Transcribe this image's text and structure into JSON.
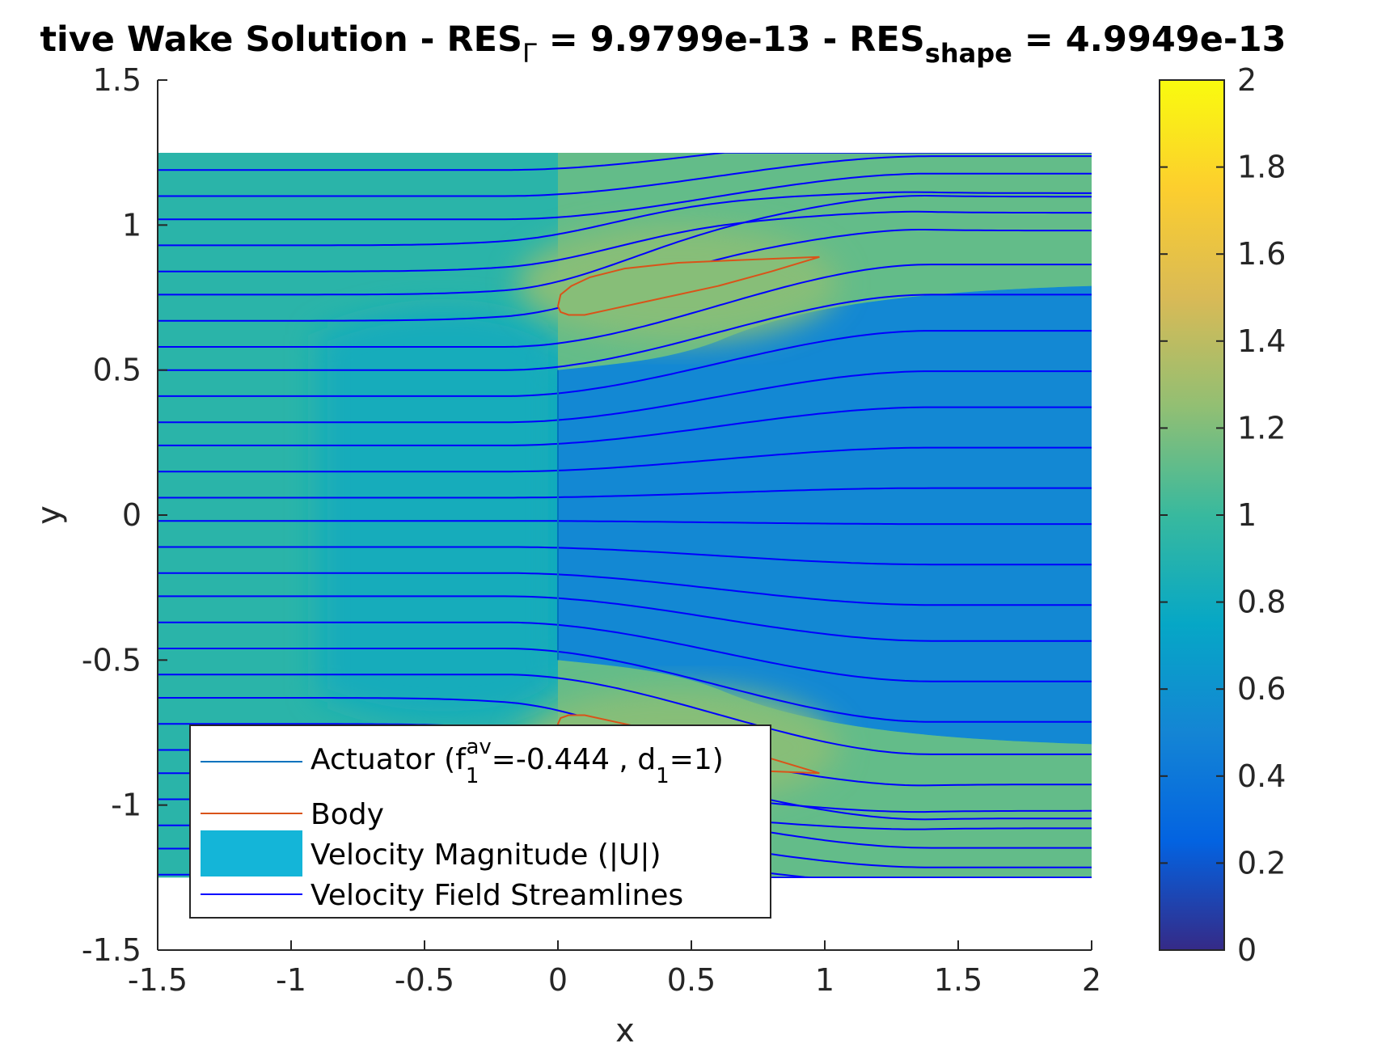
{
  "chart_data": {
    "type": "heatmap",
    "title": {
      "prefix": "tive Wake Solution - RES",
      "sub1": "Γ",
      "mid": " = 9.9799e-13 - RES",
      "sub2": "shape",
      "suffix": " = 4.9949e-13"
    },
    "xlabel": "x",
    "ylabel": "y",
    "xlim": [
      -1.5,
      2
    ],
    "ylim": [
      -1.5,
      1.5
    ],
    "x_ticks": [
      "-1.5",
      "-1",
      "-0.5",
      "0",
      "0.5",
      "1",
      "1.5",
      "2"
    ],
    "y_ticks": [
      "-1.5",
      "-1",
      "-0.5",
      "0",
      "0.5",
      "1",
      "1.5"
    ],
    "grid": false,
    "domain": {
      "x": [
        -1.5,
        2
      ],
      "y": [
        -1.25,
        1.25
      ]
    },
    "colorbar": {
      "limits": [
        0,
        2
      ],
      "ticks": [
        "0",
        "0.2",
        "0.4",
        "0.6",
        "0.8",
        "1",
        "1.2",
        "1.4",
        "1.6",
        "1.8",
        "2"
      ],
      "colormap": "parula"
    },
    "regions": {
      "freestream_upstream": 0.93,
      "upstream_inner": 0.82,
      "behind_actuator": 0.72,
      "far_wake": 0.52,
      "outer_jet": 1.12,
      "near_body": 1.22
    },
    "actuator": {
      "x": 0,
      "y": [
        -0.5,
        0.5
      ],
      "color": "#0072BD"
    },
    "bodies": [
      {
        "name": "upper",
        "points": [
          [
            0,
            0.72
          ],
          [
            0.01,
            0.76
          ],
          [
            0.05,
            0.79
          ],
          [
            0.12,
            0.82
          ],
          [
            0.25,
            0.85
          ],
          [
            0.45,
            0.87
          ],
          [
            0.7,
            0.88
          ],
          [
            0.98,
            0.89
          ],
          [
            0.8,
            0.84
          ],
          [
            0.6,
            0.79
          ],
          [
            0.4,
            0.75
          ],
          [
            0.2,
            0.71
          ],
          [
            0.1,
            0.69
          ],
          [
            0.04,
            0.69
          ],
          [
            0.01,
            0.7
          ],
          [
            0,
            0.72
          ]
        ]
      },
      {
        "name": "lower",
        "points": [
          [
            0,
            -0.72
          ],
          [
            0.01,
            -0.76
          ],
          [
            0.05,
            -0.79
          ],
          [
            0.12,
            -0.82
          ],
          [
            0.25,
            -0.85
          ],
          [
            0.45,
            -0.87
          ],
          [
            0.7,
            -0.88
          ],
          [
            0.98,
            -0.89
          ],
          [
            0.8,
            -0.84
          ],
          [
            0.6,
            -0.79
          ],
          [
            0.4,
            -0.75
          ],
          [
            0.2,
            -0.71
          ],
          [
            0.1,
            -0.69
          ],
          [
            0.04,
            -0.69
          ],
          [
            0.01,
            -0.7
          ],
          [
            0,
            -0.72
          ]
        ]
      }
    ],
    "body_color": "#D95319",
    "streamline_color": "#0000FF",
    "streamline_seeds_y": [
      -1.24,
      -1.15,
      -1.07,
      -0.98,
      -0.89,
      -0.81,
      -0.72,
      -0.63,
      -0.55,
      -0.46,
      -0.37,
      -0.28,
      -0.2,
      -0.11,
      -0.02,
      0.06,
      0.15,
      0.24,
      0.32,
      0.41,
      0.5,
      0.58,
      0.67,
      0.76,
      0.84,
      0.93,
      1.02,
      1.1,
      1.19
    ],
    "legend": {
      "position": "bottom-left",
      "entries": [
        {
          "id": "actuator",
          "label_parts": [
            "Actuator (f",
            "1",
            "av",
            "=-0.444 , d",
            "1",
            "=1)"
          ],
          "style": "line",
          "color": "#0072BD"
        },
        {
          "id": "body",
          "label": "Body",
          "style": "line",
          "color": "#D95319"
        },
        {
          "id": "velocity",
          "label": "Velocity Magnitude (|U|)",
          "style": "patch",
          "color": "#14B5D8"
        },
        {
          "id": "streamlines",
          "label": "Velocity Field Streamlines",
          "style": "line",
          "color": "#0000FF"
        }
      ]
    }
  }
}
